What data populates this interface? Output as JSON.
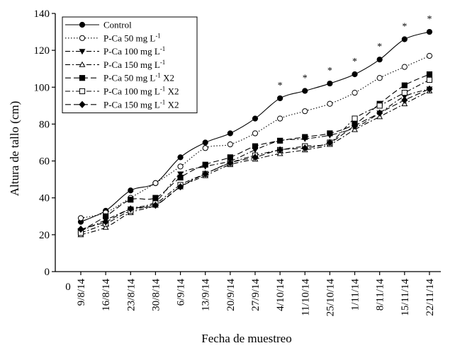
{
  "chart_data": {
    "type": "line",
    "title": "",
    "xlabel": "Fecha de muestreo",
    "ylabel": "Altura de tallo (cm)",
    "ylim": [
      0,
      140
    ],
    "yticks": [
      0,
      20,
      40,
      60,
      80,
      100,
      120,
      140
    ],
    "x_origin_label": "0",
    "categories": [
      "9/8/14",
      "16/8/14",
      "23/8/14",
      "30/8/14",
      "6/9/14",
      "13/9/14",
      "20/9/14",
      "27/9/14",
      "4/10/14",
      "11/10/14",
      "25/10/14",
      "1/11/14",
      "8/11/14",
      "15/11/14",
      "22/11/14"
    ],
    "grid": false,
    "legend_position": "top-left",
    "significance_marker": "*",
    "significant_dates": [
      "4/10/14",
      "11/10/14",
      "25/10/14",
      "1/11/14",
      "8/11/14",
      "15/11/14",
      "22/11/14"
    ],
    "series": [
      {
        "name": "Control",
        "marker": "filled-circle",
        "line": "solid",
        "values": [
          27,
          33,
          44,
          48,
          62,
          70,
          75,
          83,
          94,
          98,
          102,
          107,
          115,
          126,
          130
        ]
      },
      {
        "name": "P-Ca 50 mg L",
        "superscript": "-1",
        "marker": "open-circle",
        "line": "dotted",
        "values": [
          29,
          32,
          40,
          48,
          57,
          67,
          69,
          75,
          83,
          87,
          91,
          97,
          105,
          111,
          117
        ]
      },
      {
        "name": "P-Ca 100 mg L",
        "superscript": "-1",
        "marker": "filled-triangle-down",
        "line": "dash-dot",
        "values": [
          22,
          28,
          34,
          38,
          53,
          57,
          60,
          66,
          71,
          72,
          74,
          78,
          86,
          95,
          99
        ]
      },
      {
        "name": "P-Ca 150 mg L",
        "superscript": "-1",
        "marker": "open-triangle-up",
        "line": "dash-dot",
        "values": [
          20,
          24,
          32,
          36,
          46,
          52,
          58,
          61,
          64,
          66,
          69,
          77,
          84,
          91,
          98
        ]
      },
      {
        "name": "P-Ca 50 mg L",
        "superscript": "-1",
        "suffix": " X2",
        "marker": "filled-square",
        "line": "dashed",
        "values": [
          22,
          30,
          39,
          40,
          51,
          58,
          62,
          68,
          71,
          73,
          75,
          80,
          91,
          101,
          107
        ]
      },
      {
        "name": "P-Ca 100 mg L",
        "superscript": "-1",
        "suffix": " X2",
        "marker": "open-square",
        "line": "dash-dot",
        "values": [
          21,
          26,
          33,
          37,
          47,
          53,
          59,
          63,
          66,
          68,
          70,
          83,
          90,
          97,
          104
        ]
      },
      {
        "name": "P-Ca 150 mg L",
        "superscript": "-1",
        "suffix": " X2",
        "marker": "filled-diamond",
        "line": "dashed",
        "values": [
          23,
          27,
          34,
          36,
          46,
          53,
          59,
          62,
          66,
          67,
          70,
          79,
          86,
          93,
          99
        ]
      }
    ]
  }
}
